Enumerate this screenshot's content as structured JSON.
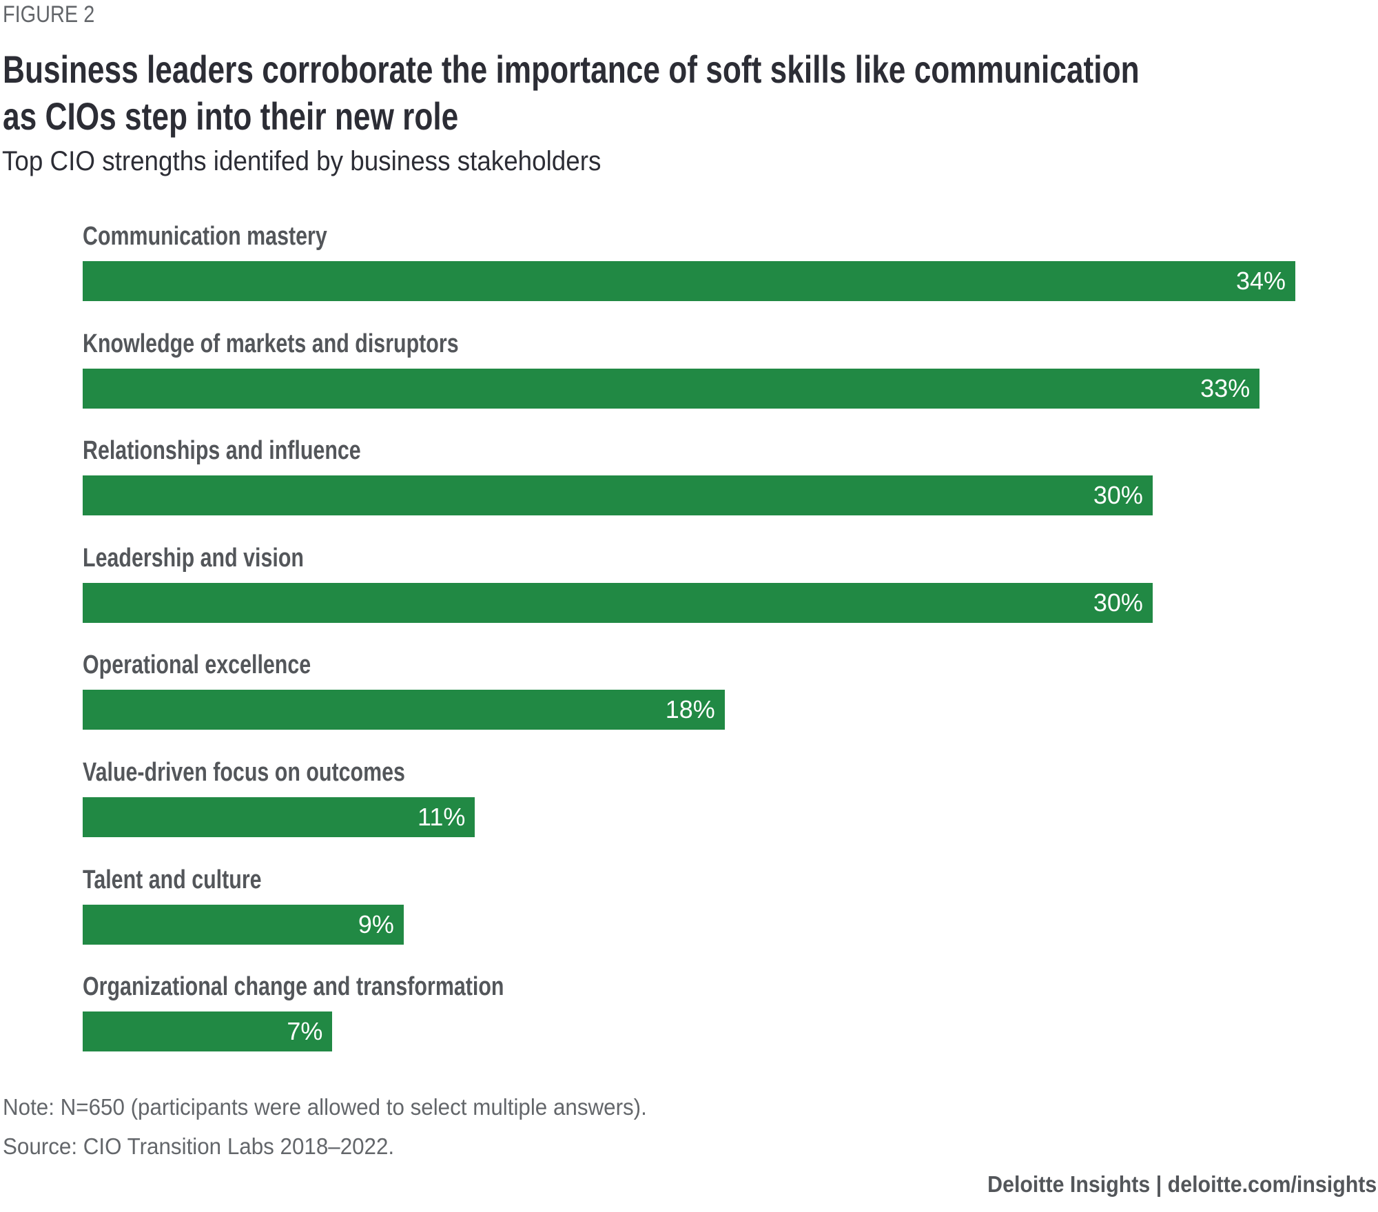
{
  "figure_label": "FIGURE 2",
  "chart_data": {
    "type": "bar",
    "orientation": "horizontal",
    "title": "Business leaders corroborate the importance of soft skills like communication as CIOs step into their new role",
    "title_lines": [
      "Business leaders corroborate the importance of soft skills like communication",
      "as CIOs step into their new role"
    ],
    "subtitle": "Top CIO strengths identifed by business stakeholders",
    "categories": [
      "Communication mastery",
      "Knowledge of markets and disruptors",
      "Relationships and influence",
      "Leadership and vision",
      "Operational excellence",
      "Value-driven focus on outcomes",
      "Talent and culture",
      "Organizational change and transformation"
    ],
    "values": [
      34,
      33,
      30,
      30,
      18,
      11,
      9,
      7
    ],
    "data_labels": [
      "34%",
      "33%",
      "30%",
      "30%",
      "18%",
      "11%",
      "9%",
      "7%"
    ],
    "unit": "%",
    "xlabel": "",
    "ylabel": "",
    "grid": false,
    "bar_color": "#218944"
  },
  "footer": {
    "note": "Note: N=650 (participants were allowed to select multiple answers).",
    "source": "Source: CIO Transition Labs 2018–2022.",
    "brand": "Deloitte Insights | deloitte.com/insights"
  }
}
